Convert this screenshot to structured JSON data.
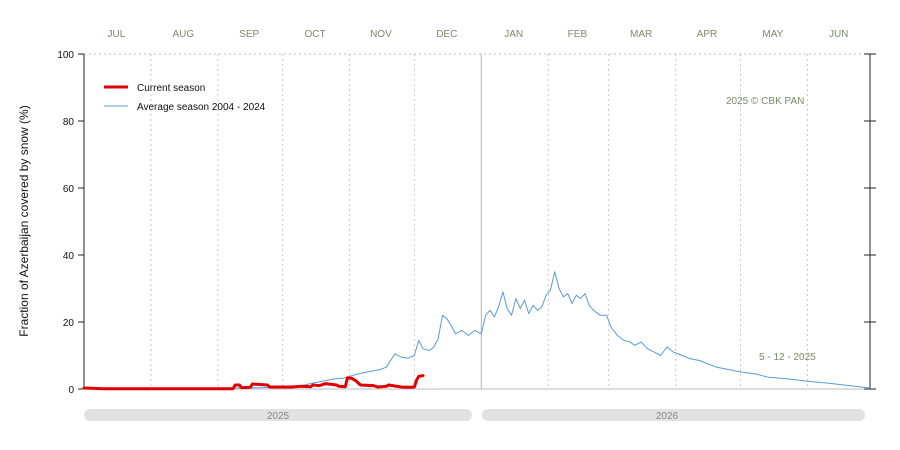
{
  "chart_data": {
    "type": "line",
    "ylabel": "Fraction of  Azerbaijan  covered by snow (%)",
    "ylim": [
      0,
      100
    ],
    "yticks": [
      0,
      20,
      40,
      60,
      80,
      100
    ],
    "xlim": [
      "2025-07-01",
      "2026-06-30"
    ],
    "month_labels": [
      "JUL",
      "AUG",
      "SEP",
      "OCT",
      "NOV",
      "DEC",
      "JAN",
      "FEB",
      "MAR",
      "APR",
      "MAY",
      "JUN"
    ],
    "year_labels": [
      "2025",
      "2026"
    ],
    "credit": "2025  © CBK PAN",
    "date_note": "5 - 12 - 2025",
    "grid": "dotted vertical gridlines",
    "legend_position": "top-left",
    "series": [
      {
        "name": "Current season",
        "color": "#e00000",
        "points": [
          {
            "x": "2025-07-01",
            "y": 0.3
          },
          {
            "x": "2025-07-10",
            "y": 0.1
          },
          {
            "x": "2025-07-20",
            "y": 0.1
          },
          {
            "x": "2025-08-01",
            "y": 0.1
          },
          {
            "x": "2025-08-15",
            "y": 0.1
          },
          {
            "x": "2025-09-01",
            "y": 0.1
          },
          {
            "x": "2025-09-08",
            "y": 0.1
          },
          {
            "x": "2025-09-09",
            "y": 1.2
          },
          {
            "x": "2025-09-11",
            "y": 1.2
          },
          {
            "x": "2025-09-12",
            "y": 0.4
          },
          {
            "x": "2025-09-16",
            "y": 0.5
          },
          {
            "x": "2025-09-17",
            "y": 1.5
          },
          {
            "x": "2025-09-24",
            "y": 1.2
          },
          {
            "x": "2025-09-25",
            "y": 0.6
          },
          {
            "x": "2025-10-05",
            "y": 0.6
          },
          {
            "x": "2025-10-10",
            "y": 0.8
          },
          {
            "x": "2025-10-14",
            "y": 0.7
          },
          {
            "x": "2025-10-15",
            "y": 1.2
          },
          {
            "x": "2025-10-18",
            "y": 1.0
          },
          {
            "x": "2025-10-21",
            "y": 1.6
          },
          {
            "x": "2025-10-26",
            "y": 1.2
          },
          {
            "x": "2025-10-27",
            "y": 0.8
          },
          {
            "x": "2025-10-30",
            "y": 0.7
          },
          {
            "x": "2025-10-31",
            "y": 3.3
          },
          {
            "x": "2025-11-02",
            "y": 3.2
          },
          {
            "x": "2025-11-04",
            "y": 2.4
          },
          {
            "x": "2025-11-06",
            "y": 1.2
          },
          {
            "x": "2025-11-12",
            "y": 1.0
          },
          {
            "x": "2025-11-14",
            "y": 0.6
          },
          {
            "x": "2025-11-18",
            "y": 0.8
          },
          {
            "x": "2025-11-19",
            "y": 1.2
          },
          {
            "x": "2025-11-22",
            "y": 0.9
          },
          {
            "x": "2025-11-25",
            "y": 0.6
          },
          {
            "x": "2025-11-29",
            "y": 0.5
          },
          {
            "x": "2025-12-01",
            "y": 0.6
          },
          {
            "x": "2025-12-02",
            "y": 2.6
          },
          {
            "x": "2025-12-03",
            "y": 3.8
          },
          {
            "x": "2025-12-05",
            "y": 4.0
          }
        ]
      },
      {
        "name": "Average season 2004 - 2024",
        "color": "#5b9bd5",
        "points": [
          {
            "x": "2025-07-01",
            "y": 0.1
          },
          {
            "x": "2025-08-01",
            "y": 0.1
          },
          {
            "x": "2025-09-01",
            "y": 0.2
          },
          {
            "x": "2025-09-20",
            "y": 0.4
          },
          {
            "x": "2025-10-01",
            "y": 0.6
          },
          {
            "x": "2025-10-10",
            "y": 1.0
          },
          {
            "x": "2025-10-15",
            "y": 1.8
          },
          {
            "x": "2025-10-20",
            "y": 2.4
          },
          {
            "x": "2025-10-25",
            "y": 3.0
          },
          {
            "x": "2025-10-29",
            "y": 3.2
          },
          {
            "x": "2025-11-01",
            "y": 3.8
          },
          {
            "x": "2025-11-05",
            "y": 4.5
          },
          {
            "x": "2025-11-10",
            "y": 5.2
          },
          {
            "x": "2025-11-15",
            "y": 5.8
          },
          {
            "x": "2025-11-18",
            "y": 6.5
          },
          {
            "x": "2025-11-22",
            "y": 10.5
          },
          {
            "x": "2025-11-25",
            "y": 9.5
          },
          {
            "x": "2025-11-28",
            "y": 9.2
          },
          {
            "x": "2025-12-01",
            "y": 10.0
          },
          {
            "x": "2025-12-03",
            "y": 14.5
          },
          {
            "x": "2025-12-05",
            "y": 12.0
          },
          {
            "x": "2025-12-08",
            "y": 11.5
          },
          {
            "x": "2025-12-10",
            "y": 12.5
          },
          {
            "x": "2025-12-12",
            "y": 15.0
          },
          {
            "x": "2025-12-14",
            "y": 22.0
          },
          {
            "x": "2025-12-16",
            "y": 21.0
          },
          {
            "x": "2025-12-18",
            "y": 19.0
          },
          {
            "x": "2025-12-20",
            "y": 16.5
          },
          {
            "x": "2025-12-23",
            "y": 17.5
          },
          {
            "x": "2025-12-26",
            "y": 16.0
          },
          {
            "x": "2025-12-29",
            "y": 17.5
          },
          {
            "x": "2026-01-01",
            "y": 16.5
          },
          {
            "x": "2026-01-03",
            "y": 22.0
          },
          {
            "x": "2026-01-05",
            "y": 23.5
          },
          {
            "x": "2026-01-07",
            "y": 21.5
          },
          {
            "x": "2026-01-09",
            "y": 24.5
          },
          {
            "x": "2026-01-11",
            "y": 29.0
          },
          {
            "x": "2026-01-13",
            "y": 24.0
          },
          {
            "x": "2026-01-15",
            "y": 22.0
          },
          {
            "x": "2026-01-17",
            "y": 27.0
          },
          {
            "x": "2026-01-19",
            "y": 24.0
          },
          {
            "x": "2026-01-21",
            "y": 26.5
          },
          {
            "x": "2026-01-23",
            "y": 22.5
          },
          {
            "x": "2026-01-25",
            "y": 25.0
          },
          {
            "x": "2026-01-27",
            "y": 23.5
          },
          {
            "x": "2026-01-29",
            "y": 24.5
          },
          {
            "x": "2026-01-31",
            "y": 28.0
          },
          {
            "x": "2026-02-02",
            "y": 29.5
          },
          {
            "x": "2026-02-04",
            "y": 35.0
          },
          {
            "x": "2026-02-06",
            "y": 30.0
          },
          {
            "x": "2026-02-08",
            "y": 27.5
          },
          {
            "x": "2026-02-10",
            "y": 28.5
          },
          {
            "x": "2026-02-12",
            "y": 25.5
          },
          {
            "x": "2026-02-14",
            "y": 28.0
          },
          {
            "x": "2026-02-16",
            "y": 27.0
          },
          {
            "x": "2026-02-18",
            "y": 28.5
          },
          {
            "x": "2026-02-20",
            "y": 25.0
          },
          {
            "x": "2026-02-22",
            "y": 23.5
          },
          {
            "x": "2026-02-25",
            "y": 22.0
          },
          {
            "x": "2026-02-28",
            "y": 22.0
          },
          {
            "x": "2026-03-02",
            "y": 18.5
          },
          {
            "x": "2026-03-05",
            "y": 16.0
          },
          {
            "x": "2026-03-08",
            "y": 14.5
          },
          {
            "x": "2026-03-11",
            "y": 14.0
          },
          {
            "x": "2026-03-13",
            "y": 13.0
          },
          {
            "x": "2026-03-16",
            "y": 14.0
          },
          {
            "x": "2026-03-19",
            "y": 12.0
          },
          {
            "x": "2026-03-22",
            "y": 11.0
          },
          {
            "x": "2026-03-25",
            "y": 10.0
          },
          {
            "x": "2026-03-28",
            "y": 12.5
          },
          {
            "x": "2026-03-31",
            "y": 11.0
          },
          {
            "x": "2026-04-04",
            "y": 10.0
          },
          {
            "x": "2026-04-08",
            "y": 9.0
          },
          {
            "x": "2026-04-12",
            "y": 8.5
          },
          {
            "x": "2026-04-16",
            "y": 7.5
          },
          {
            "x": "2026-04-20",
            "y": 6.5
          },
          {
            "x": "2026-04-24",
            "y": 6.0
          },
          {
            "x": "2026-04-28",
            "y": 5.5
          },
          {
            "x": "2026-05-02",
            "y": 5.0
          },
          {
            "x": "2026-05-08",
            "y": 4.5
          },
          {
            "x": "2026-05-14",
            "y": 3.5
          },
          {
            "x": "2026-05-20",
            "y": 3.2
          },
          {
            "x": "2026-05-26",
            "y": 2.8
          },
          {
            "x": "2026-06-01",
            "y": 2.3
          },
          {
            "x": "2026-06-10",
            "y": 1.8
          },
          {
            "x": "2026-06-18",
            "y": 1.2
          },
          {
            "x": "2026-06-26",
            "y": 0.6
          },
          {
            "x": "2026-06-30",
            "y": 0.3
          }
        ]
      }
    ]
  }
}
